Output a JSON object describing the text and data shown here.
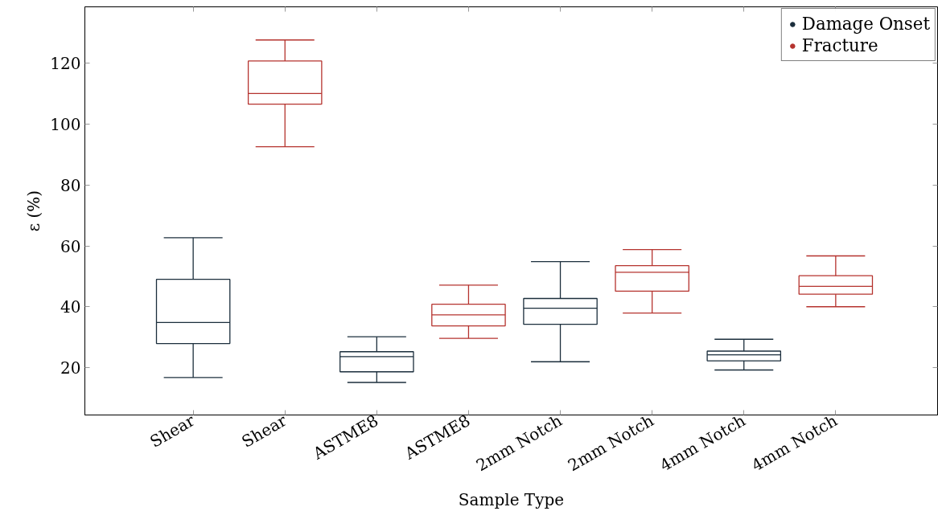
{
  "chart_data": {
    "type": "box",
    "xlabel": "Sample Type",
    "ylabel": "ε (%)",
    "categories": [
      "Shear",
      "Shear",
      "ASTME8",
      "ASTME8",
      "2mm Notch",
      "2mm Notch",
      "4mm Notch",
      "4mm Notch"
    ],
    "ylim": [
      4.4,
      138.6
    ],
    "yticks": [
      20,
      40,
      60,
      80,
      100,
      120
    ],
    "grid": false,
    "legend": "top right",
    "series": [
      {
        "name": "Damage Onset",
        "color": "#1b2e3c",
        "boxes": [
          {
            "low": 16.7,
            "q1": 27.9,
            "median": 34.8,
            "q3": 49.0,
            "high": 62.7
          },
          null,
          {
            "low": 15.1,
            "q1": 18.6,
            "median": 23.6,
            "q3": 25.2,
            "high": 30.1
          },
          null,
          {
            "low": 21.9,
            "q1": 34.2,
            "median": 39.5,
            "q3": 42.7,
            "high": 54.8
          },
          null,
          {
            "low": 19.2,
            "q1": 22.2,
            "median": 24.2,
            "q3": 25.4,
            "high": 29.3
          },
          null
        ]
      },
      {
        "name": "Fracture",
        "color": "#b5332e",
        "boxes": [
          null,
          {
            "low": 92.6,
            "q1": 106.6,
            "median": 110.1,
            "q3": 120.8,
            "high": 127.7
          },
          null,
          {
            "low": 29.6,
            "q1": 33.7,
            "median": 37.3,
            "q3": 40.8,
            "high": 47.1
          },
          null,
          {
            "low": 37.9,
            "q1": 45.1,
            "median": 51.3,
            "q3": 53.5,
            "high": 58.8
          },
          null,
          {
            "low": 40.0,
            "q1": 44.1,
            "median": 46.7,
            "q3": 50.2,
            "high": 56.7
          }
        ]
      }
    ]
  }
}
